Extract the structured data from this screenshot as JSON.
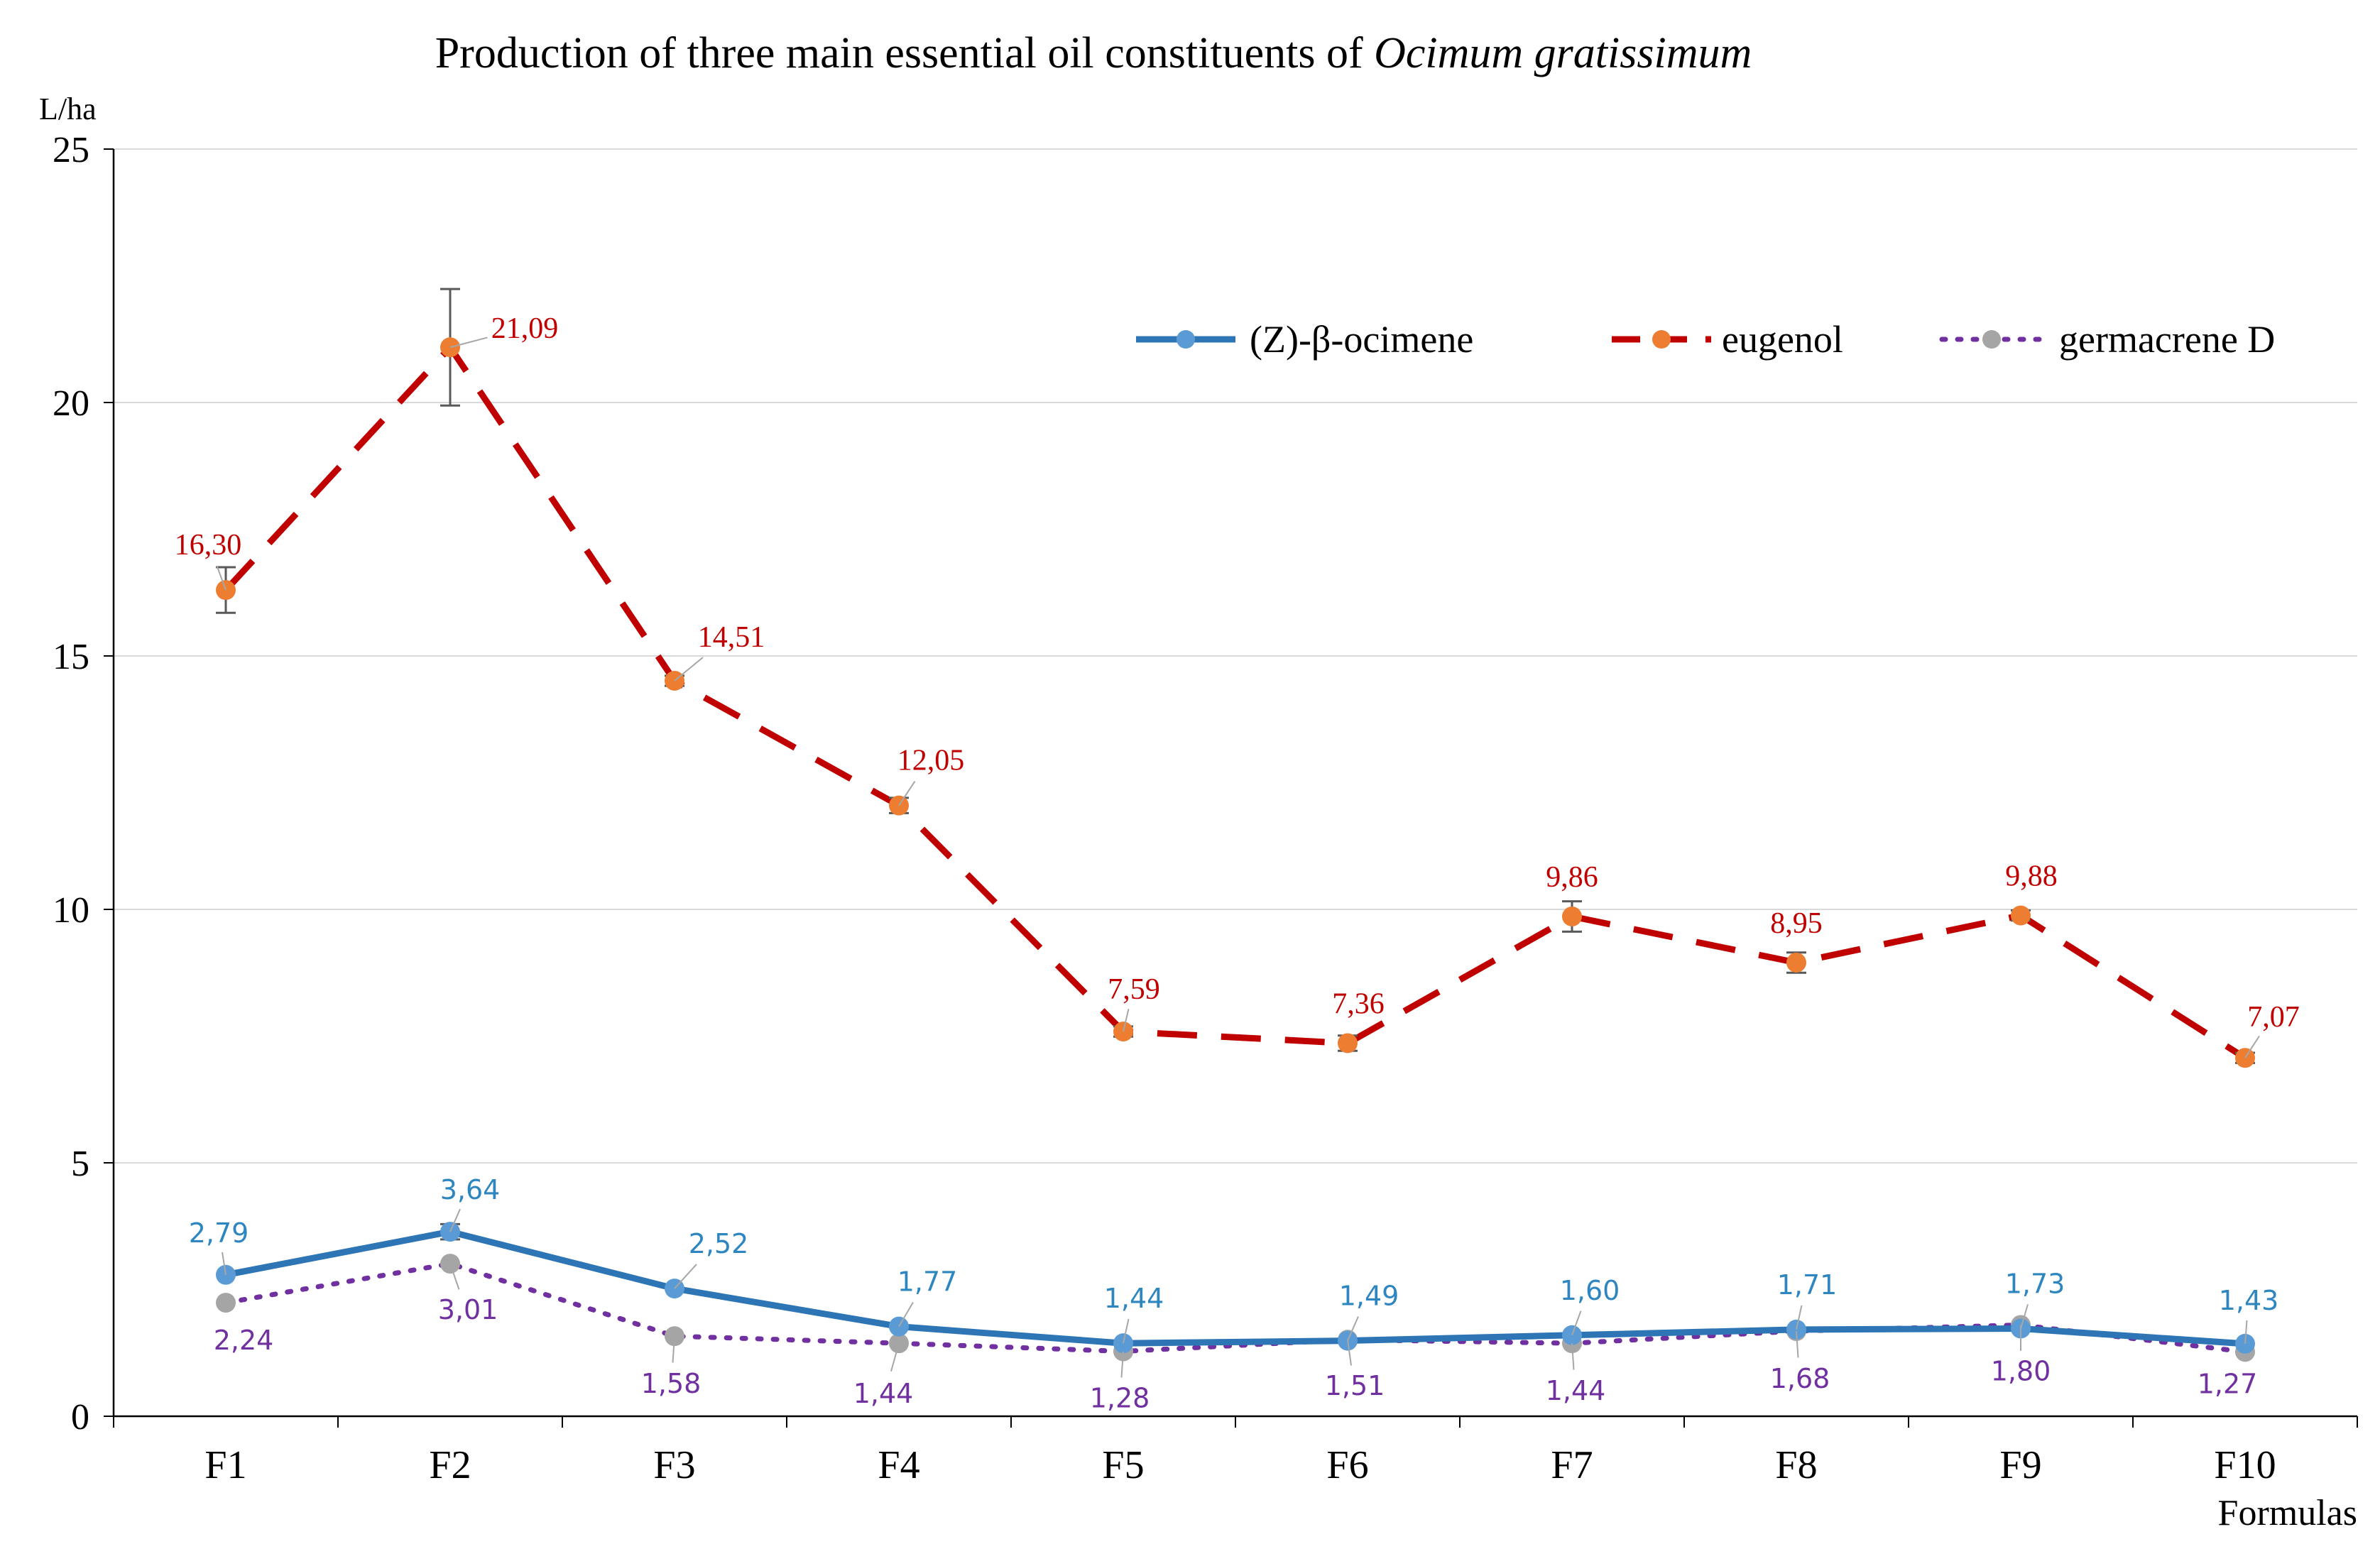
{
  "chart_data": {
    "type": "line",
    "title_main": "Production of three main essential oil constituents of ",
    "title_italic": "Ocimum gratissimum",
    "unit_label": "L/ha",
    "xlabel": "Formulas",
    "ylim": [
      0,
      25
    ],
    "yticks": [
      "0",
      "5",
      "10",
      "15",
      "20",
      "25"
    ],
    "grid": "horizontal",
    "legend_position": "top-right",
    "categories": [
      "F1",
      "F2",
      "F3",
      "F4",
      "F5",
      "F6",
      "F7",
      "F8",
      "F9",
      "F10"
    ],
    "series": [
      {
        "name": "(Z)-β-ocimene",
        "style": "solid",
        "color": "#2E75B6",
        "marker_color": "#5B9BD5",
        "label_color": "#2E86C1",
        "values": [
          2.79,
          3.64,
          2.52,
          1.77,
          1.44,
          1.49,
          1.6,
          1.71,
          1.73,
          1.43
        ],
        "labels": [
          "2,79",
          "3,64",
          "2,52",
          "1,77",
          "1,44",
          "1,49",
          "1,60",
          "1,71",
          "1,73",
          "1,43"
        ],
        "error": [
          0,
          0.15,
          0,
          0,
          0,
          0,
          0,
          0,
          0,
          0
        ]
      },
      {
        "name": "eugenol",
        "style": "dashed",
        "color": "#C00000",
        "marker_color": "#ED7D31",
        "label_color": "#C00000",
        "values": [
          16.3,
          21.09,
          14.51,
          12.05,
          7.59,
          7.36,
          9.86,
          8.95,
          9.88,
          7.07
        ],
        "labels": [
          "16,30",
          "21,09",
          "14,51",
          "12,05",
          "7,59",
          "7,36",
          "9,86",
          "8,95",
          "9,88",
          "7,07"
        ],
        "error": [
          0.45,
          1.15,
          0.1,
          0.15,
          0.1,
          0.15,
          0.3,
          0.2,
          0.1,
          0.1
        ]
      },
      {
        "name": "germacrene D",
        "style": "dotted",
        "color": "#7030A0",
        "marker_color": "#A5A5A5",
        "label_color": "#7030A0",
        "values": [
          2.24,
          3.01,
          1.58,
          1.44,
          1.28,
          1.51,
          1.44,
          1.68,
          1.8,
          1.27
        ],
        "labels": [
          "2,24",
          "3,01",
          "1,58",
          "1,44",
          "1,28",
          "1,51",
          "1,44",
          "1,68",
          "1,80",
          "1,27"
        ],
        "error": [
          0,
          0,
          0,
          0,
          0,
          0,
          0,
          0,
          0,
          0
        ]
      }
    ]
  }
}
